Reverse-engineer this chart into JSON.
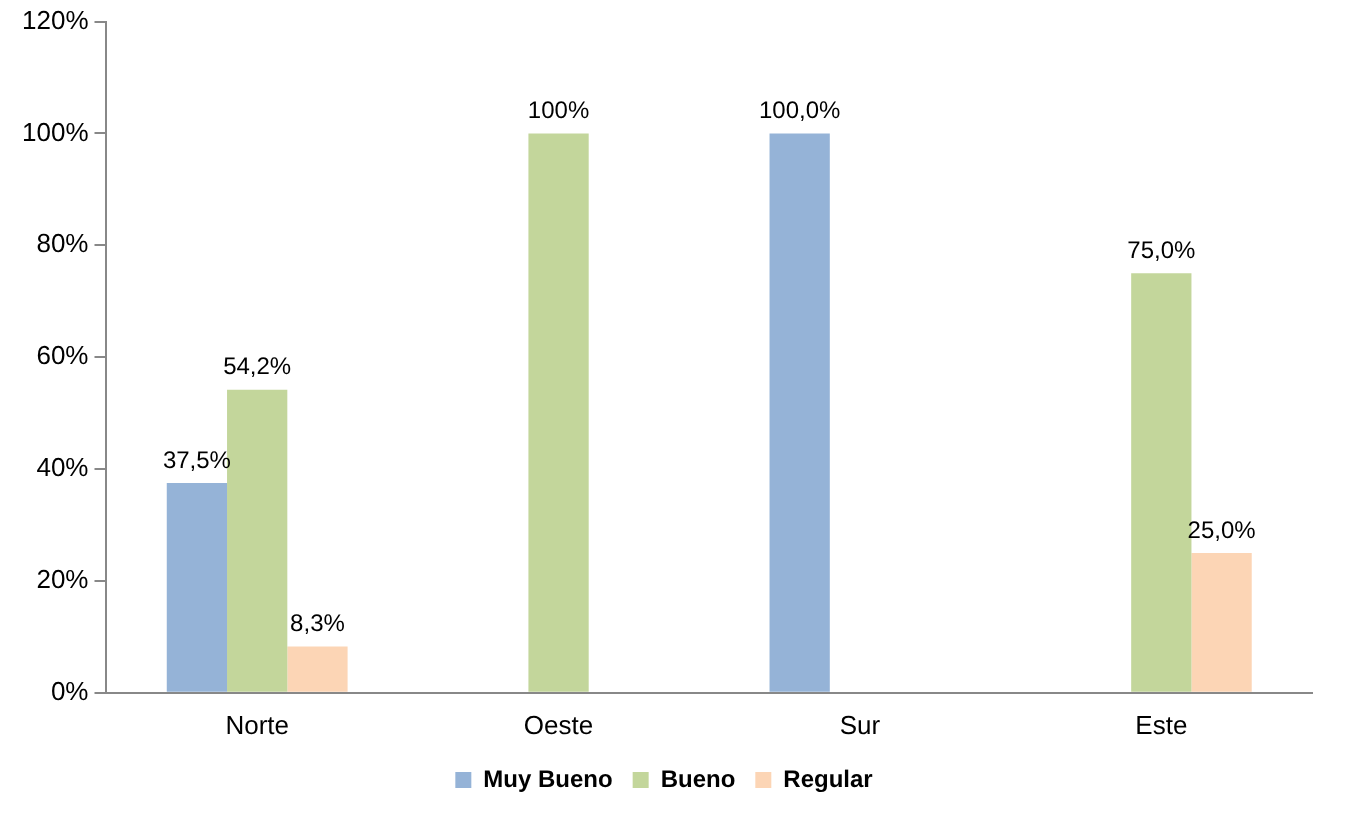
{
  "chart_data": {
    "type": "bar",
    "categories": [
      "Norte",
      "Oeste",
      "Sur",
      "Este"
    ],
    "series": [
      {
        "name": "Muy Bueno",
        "color": "#95b3d7",
        "values": [
          37.5,
          null,
          100,
          null
        ],
        "value_labels": [
          "37,5%",
          null,
          "100,0%",
          null
        ]
      },
      {
        "name": "Bueno",
        "color": "#c3d69b",
        "values": [
          54.2,
          100,
          null,
          75
        ],
        "value_labels": [
          "54,2%",
          "100%",
          null,
          "75,0%"
        ]
      },
      {
        "name": "Regular",
        "color": "#fcd5b5",
        "values": [
          8.3,
          null,
          null,
          25
        ],
        "value_labels": [
          "8,3%",
          null,
          null,
          "25,0%"
        ]
      }
    ],
    "ylim": [
      0,
      120
    ],
    "yticks": [
      {
        "value": 0,
        "label": "0%"
      },
      {
        "value": 20,
        "label": "20%"
      },
      {
        "value": 40,
        "label": "40%"
      },
      {
        "value": 60,
        "label": "60%"
      },
      {
        "value": 80,
        "label": "80%"
      },
      {
        "value": 100,
        "label": "100%"
      },
      {
        "value": 120,
        "label": "120%"
      }
    ],
    "grid": false,
    "legend": "bottom"
  }
}
